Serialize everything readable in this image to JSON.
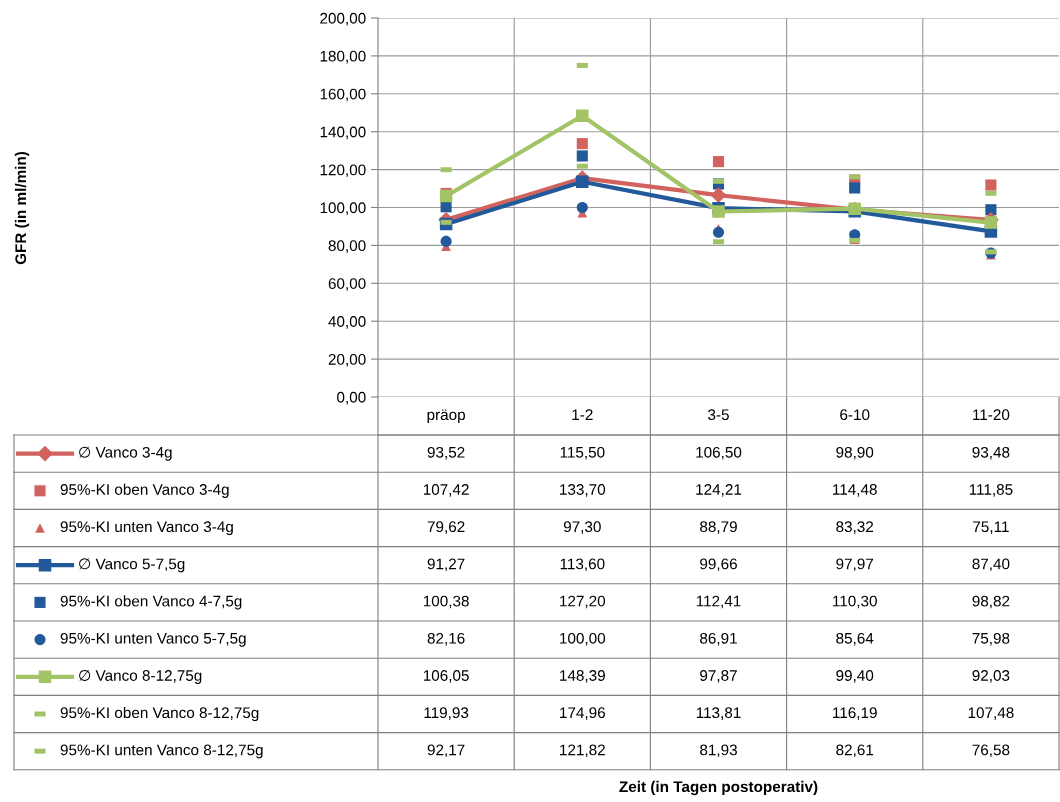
{
  "chart_data": {
    "type": "line",
    "annotations": [
      "GFR (in ml/min)",
      "Zeit (in Tagen postoperativ)"
    ],
    "categories": [
      "präop",
      "1-2",
      "3-5",
      "6-10",
      "11-20"
    ],
    "ylim": [
      0,
      200
    ],
    "yticks": [
      {
        "value": 0,
        "label": "0,00"
      },
      {
        "value": 20,
        "label": "20,00"
      },
      {
        "value": 40,
        "label": "40,00"
      },
      {
        "value": 60,
        "label": "60,00"
      },
      {
        "value": 80,
        "label": "80,00"
      },
      {
        "value": 100,
        "label": "100,00"
      },
      {
        "value": 120,
        "label": "120,00"
      },
      {
        "value": 140,
        "label": "140,00"
      },
      {
        "value": 160,
        "label": "160,00"
      },
      {
        "value": 180,
        "label": "180,00"
      },
      {
        "value": 200,
        "label": "200,00"
      }
    ],
    "grid": "y",
    "legend": "bottom left",
    "series": [
      {
        "name": "∅ Vanco 3-4g",
        "marker": "diamond",
        "color": "#d2625e",
        "values": [
          93.52,
          115.5,
          106.5,
          98.9,
          93.48
        ],
        "value_labels": [
          "93,52",
          "115,50",
          "106,50",
          "98,90",
          "93,48"
        ]
      },
      {
        "name": "95%-KI oben Vanco 3-4g",
        "type": "scatter",
        "marker": "square",
        "color": "#d2625e",
        "values": [
          107.42,
          133.7,
          124.21,
          114.48,
          111.85
        ],
        "value_labels": [
          "107,42",
          "133,70",
          "124,21",
          "114,48",
          "111,85"
        ]
      },
      {
        "name": "95%-KI unten Vanco 3-4g",
        "type": "scatter",
        "marker": "triangle",
        "color": "#d2625e",
        "values": [
          79.62,
          97.3,
          88.79,
          83.32,
          75.11
        ],
        "value_labels": [
          "79,62",
          "97,30",
          "88,79",
          "83,32",
          "75,11"
        ]
      },
      {
        "name": "∅ Vanco 5-7,5g",
        "marker": "square",
        "color": "#22599b",
        "values": [
          91.27,
          113.6,
          99.66,
          97.97,
          87.4
        ],
        "value_labels": [
          "91,27",
          "113,60",
          "99,66",
          "97,97",
          "87,40"
        ]
      },
      {
        "name": "95%-KI oben Vanco 4-7,5g",
        "type": "scatter",
        "marker": "square",
        "color": "#22599b",
        "values": [
          100.38,
          127.2,
          112.41,
          110.3,
          98.82
        ],
        "value_labels": [
          "100,38",
          "127,20",
          "112,41",
          "110,30",
          "98,82"
        ]
      },
      {
        "name": "95%-KI unten Vanco 5-7,5g",
        "type": "scatter",
        "marker": "circle",
        "color": "#22599b",
        "values": [
          82.16,
          100.0,
          86.91,
          85.64,
          75.98
        ],
        "value_labels": [
          "82,16",
          "100,00",
          "86,91",
          "85,64",
          "75,98"
        ]
      },
      {
        "name": "∅ Vanco 8-12,75g",
        "marker": "square",
        "color": "#a3c466",
        "values": [
          106.05,
          148.39,
          97.87,
          99.4,
          92.03
        ],
        "value_labels": [
          "106,05",
          "148,39",
          "97,87",
          "99,40",
          "92,03"
        ]
      },
      {
        "name": "95%-KI oben Vanco 8-12,75g",
        "type": "scatter",
        "color": "#a3c466",
        "values": [
          119.93,
          174.96,
          113.81,
          116.19,
          107.48
        ],
        "value_labels": [
          "119,93",
          "174,96",
          "113,81",
          "116,19",
          "107,48"
        ]
      },
      {
        "name": "95%-KI unten Vanco 8-12,75g",
        "type": "scatter",
        "color": "#a3c466",
        "values": [
          92.17,
          121.82,
          81.93,
          82.61,
          76.58
        ],
        "value_labels": [
          "92,17",
          "121,82",
          "81,93",
          "82,61",
          "76,58"
        ]
      }
    ]
  }
}
